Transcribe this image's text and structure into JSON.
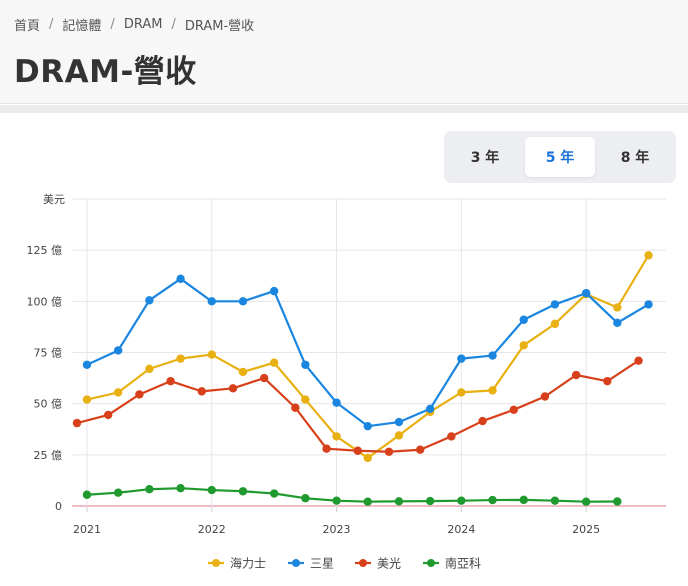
{
  "breadcrumb": {
    "items": [
      "首頁",
      "記憶體",
      "DRAM",
      "DRAM-營收"
    ],
    "separator": "/"
  },
  "page": {
    "title": "DRAM-營收"
  },
  "range_selector": {
    "options": [
      "3 年",
      "5 年",
      "8 年"
    ],
    "active": "5 年"
  },
  "chart_data": {
    "type": "line",
    "title": "",
    "ylabel": "美元",
    "y_unit_label": "美元",
    "ylim": [
      0,
      150
    ],
    "yticks": [
      {
        "value": 0,
        "label": "0"
      },
      {
        "value": 25,
        "label": "25 億"
      },
      {
        "value": 50,
        "label": "50 億"
      },
      {
        "value": 75,
        "label": "75 億"
      },
      {
        "value": 100,
        "label": "100 億"
      },
      {
        "value": 125,
        "label": "125 億"
      }
    ],
    "xlim": [
      2020.88,
      2025.64
    ],
    "xticks": [
      {
        "value": 2021,
        "label": "2021"
      },
      {
        "value": 2022,
        "label": "2022"
      },
      {
        "value": 2023,
        "label": "2023"
      },
      {
        "value": 2024,
        "label": "2024"
      },
      {
        "value": 2025,
        "label": "2025"
      }
    ],
    "x": [
      2021.0,
      2021.25,
      2021.5,
      2021.75,
      2022.0,
      2022.25,
      2022.5,
      2022.75,
      2023.0,
      2023.25,
      2023.5,
      2023.75,
      2024.0,
      2024.25,
      2024.5,
      2024.75,
      2025.0,
      2025.25,
      2025.5
    ],
    "series": [
      {
        "name": "海力士",
        "color": "#e8b010",
        "x": [
          2021.0,
          2021.25,
          2021.5,
          2021.75,
          2022.0,
          2022.25,
          2022.5,
          2022.75,
          2023.0,
          2023.25,
          2023.5,
          2023.75,
          2024.0,
          2024.25,
          2024.5,
          2024.75,
          2025.0,
          2025.25,
          2025.5
        ],
        "values": [
          52,
          55.5,
          67,
          72,
          74,
          65.5,
          70,
          52,
          34,
          23.5,
          34.5,
          46,
          55.5,
          56.5,
          78.5,
          89,
          103.5,
          97,
          122.5
        ]
      },
      {
        "name": "三星",
        "color": "#1a86e0",
        "x": [
          2021.0,
          2021.25,
          2021.5,
          2021.75,
          2022.0,
          2022.25,
          2022.5,
          2022.75,
          2023.0,
          2023.25,
          2023.5,
          2023.75,
          2024.0,
          2024.25,
          2024.5,
          2024.75,
          2025.0,
          2025.25,
          2025.5
        ],
        "values": [
          69,
          76,
          100.5,
          111,
          100,
          100,
          105,
          69,
          50.5,
          39,
          41,
          47.5,
          72,
          73.5,
          91,
          98.5,
          104,
          89.5,
          98.5
        ]
      },
      {
        "name": "美光",
        "color": "#d8401c",
        "x": [
          2020.92,
          2021.17,
          2021.42,
          2021.67,
          2021.92,
          2022.17,
          2022.42,
          2022.67,
          2022.92,
          2023.17,
          2023.42,
          2023.67,
          2023.92,
          2024.17,
          2024.42,
          2024.67,
          2024.92,
          2025.17,
          2025.42
        ],
        "values": [
          40.5,
          44.5,
          54.5,
          61,
          56,
          57.5,
          62.5,
          48,
          28,
          27,
          26.5,
          27.5,
          34,
          41.5,
          47,
          53.5,
          64,
          61,
          71
        ]
      },
      {
        "name": "南亞科",
        "color": "#1f9a2e",
        "x": [
          2021.0,
          2021.25,
          2021.5,
          2021.75,
          2022.0,
          2022.25,
          2022.5,
          2022.75,
          2023.0,
          2023.25,
          2023.5,
          2023.75,
          2024.0,
          2024.25,
          2024.5,
          2024.75,
          2025.0,
          2025.25
        ],
        "values": [
          5.5,
          6.5,
          8.2,
          8.7,
          7.8,
          7.2,
          6.1,
          3.8,
          2.6,
          2.1,
          2.3,
          2.4,
          2.6,
          2.9,
          3.0,
          2.6,
          2.1,
          2.2
        ]
      }
    ],
    "legend": [
      "海力士",
      "三星",
      "美光",
      "南亞科"
    ],
    "legend_position": "bottom-center",
    "grid": true
  }
}
